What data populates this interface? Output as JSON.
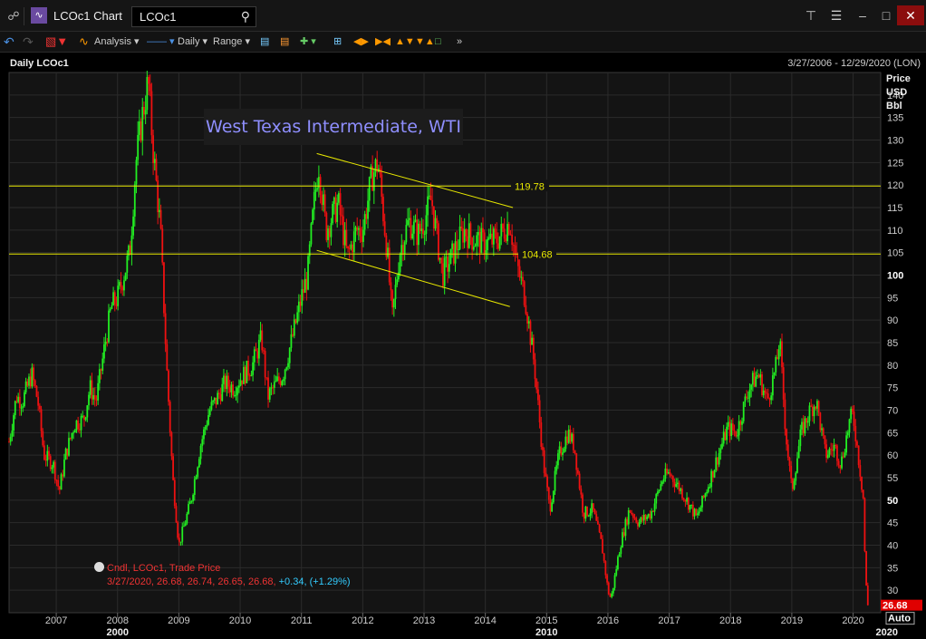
{
  "window": {
    "title": "LCOc1 Chart",
    "search_value": "LCOc1",
    "icons": [
      "link-icon",
      "chart-app-icon",
      "search-icon",
      "tree-icon",
      "menu-icon",
      "minimize-icon",
      "maximize-icon",
      "close-icon"
    ]
  },
  "toolbar": {
    "analysis_label": "Analysis",
    "interval_label": "Daily",
    "range_label": "Range"
  },
  "chart_header": {
    "left": "Daily LCOc1",
    "right": "3/27/2006 - 12/29/2020 (LON)"
  },
  "legend": {
    "line1": "Cndl, LCOc1, Trade Price",
    "line2_values": "3/27/2020, 26.68, 26.74, 26.65, 26.68,",
    "line2_change": "+0.34, (+1.29%)"
  },
  "chart_data": {
    "type": "candlestick",
    "title": "",
    "annotation": "West Texas Intermediate, WTI",
    "y_axis_label": [
      "Price",
      "USD",
      "Bbl"
    ],
    "y_ticks": [
      30,
      35,
      40,
      45,
      50,
      55,
      60,
      65,
      70,
      75,
      80,
      85,
      90,
      95,
      100,
      105,
      110,
      115,
      120,
      125,
      130,
      135,
      140
    ],
    "ylim": [
      25,
      145
    ],
    "x_ticks_year": [
      "2007",
      "2008",
      "2009",
      "2010",
      "2011",
      "2012",
      "2013",
      "2014",
      "2015",
      "2016",
      "2017",
      "2018",
      "2019",
      "2020"
    ],
    "x_ticks_major": [
      "2000",
      "2010",
      "2020"
    ],
    "horizontal_lines": [
      {
        "label": "119.78",
        "value": 119.78
      },
      {
        "label": "104.68",
        "value": 104.68
      }
    ],
    "trend_channel": {
      "upper": [
        [
          2011.25,
          127
        ],
        [
          2014.45,
          115
        ]
      ],
      "lower": [
        [
          2011.25,
          105.5
        ],
        [
          2014.4,
          93
        ]
      ]
    },
    "last_price_label": "26.68",
    "last_price": 26.68,
    "auto_label": "Auto",
    "colors": {
      "up": "#22ee22",
      "down": "#ee1111",
      "line": "#e8e800",
      "grid": "#2b2b2b"
    },
    "path_points": [
      [
        2006.23,
        63
      ],
      [
        2006.35,
        73
      ],
      [
        2006.45,
        72
      ],
      [
        2006.6,
        78
      ],
      [
        2006.7,
        72
      ],
      [
        2006.8,
        60
      ],
      [
        2006.95,
        58
      ],
      [
        2007.05,
        52
      ],
      [
        2007.15,
        60
      ],
      [
        2007.3,
        67
      ],
      [
        2007.45,
        68
      ],
      [
        2007.55,
        75
      ],
      [
        2007.65,
        72
      ],
      [
        2007.8,
        85
      ],
      [
        2007.9,
        93
      ],
      [
        2008.0,
        95
      ],
      [
        2008.1,
        100
      ],
      [
        2008.2,
        105
      ],
      [
        2008.3,
        125
      ],
      [
        2008.4,
        135
      ],
      [
        2008.5,
        143
      ],
      [
        2008.58,
        128
      ],
      [
        2008.7,
        110
      ],
      [
        2008.8,
        80
      ],
      [
        2008.9,
        55
      ],
      [
        2009.0,
        40
      ],
      [
        2009.1,
        45
      ],
      [
        2009.2,
        50
      ],
      [
        2009.35,
        62
      ],
      [
        2009.5,
        70
      ],
      [
        2009.6,
        72
      ],
      [
        2009.75,
        76
      ],
      [
        2009.9,
        75
      ],
      [
        2010.0,
        77
      ],
      [
        2010.2,
        80
      ],
      [
        2010.35,
        86
      ],
      [
        2010.45,
        73
      ],
      [
        2010.6,
        76
      ],
      [
        2010.7,
        78
      ],
      [
        2010.85,
        86
      ],
      [
        2011.0,
        95
      ],
      [
        2011.1,
        100
      ],
      [
        2011.2,
        115
      ],
      [
        2011.28,
        125
      ],
      [
        2011.4,
        110
      ],
      [
        2011.6,
        116
      ],
      [
        2011.75,
        104
      ],
      [
        2011.9,
        110
      ],
      [
        2012.0,
        110
      ],
      [
        2012.15,
        122
      ],
      [
        2012.25,
        125
      ],
      [
        2012.4,
        105
      ],
      [
        2012.48,
        90
      ],
      [
        2012.6,
        105
      ],
      [
        2012.75,
        112
      ],
      [
        2012.9,
        109
      ],
      [
        2013.0,
        112
      ],
      [
        2013.12,
        117
      ],
      [
        2013.3,
        100
      ],
      [
        2013.45,
        104
      ],
      [
        2013.65,
        110
      ],
      [
        2013.8,
        108
      ],
      [
        2014.0,
        107
      ],
      [
        2014.2,
        108
      ],
      [
        2014.4,
        112
      ],
      [
        2014.5,
        103
      ],
      [
        2014.65,
        95
      ],
      [
        2014.8,
        80
      ],
      [
        2014.95,
        58
      ],
      [
        2015.05,
        48
      ],
      [
        2015.2,
        60
      ],
      [
        2015.35,
        65
      ],
      [
        2015.45,
        62
      ],
      [
        2015.6,
        47
      ],
      [
        2015.75,
        48
      ],
      [
        2015.9,
        40
      ],
      [
        2016.0,
        30
      ],
      [
        2016.05,
        28
      ],
      [
        2016.2,
        40
      ],
      [
        2016.35,
        48
      ],
      [
        2016.5,
        45
      ],
      [
        2016.7,
        47
      ],
      [
        2016.9,
        55
      ],
      [
        2017.0,
        56
      ],
      [
        2017.2,
        52
      ],
      [
        2017.45,
        46
      ],
      [
        2017.6,
        52
      ],
      [
        2017.75,
        58
      ],
      [
        2017.95,
        66
      ],
      [
        2018.1,
        65
      ],
      [
        2018.3,
        75
      ],
      [
        2018.45,
        78
      ],
      [
        2018.6,
        72
      ],
      [
        2018.75,
        80
      ],
      [
        2018.8,
        86
      ],
      [
        2018.9,
        65
      ],
      [
        2019.0,
        52
      ],
      [
        2019.15,
        65
      ],
      [
        2019.3,
        70
      ],
      [
        2019.4,
        72
      ],
      [
        2019.55,
        60
      ],
      [
        2019.7,
        62
      ],
      [
        2019.8,
        58
      ],
      [
        2019.95,
        68
      ],
      [
        2020.0,
        69
      ],
      [
        2020.1,
        58
      ],
      [
        2020.17,
        50
      ],
      [
        2020.2,
        33
      ],
      [
        2020.24,
        26.68
      ]
    ]
  }
}
